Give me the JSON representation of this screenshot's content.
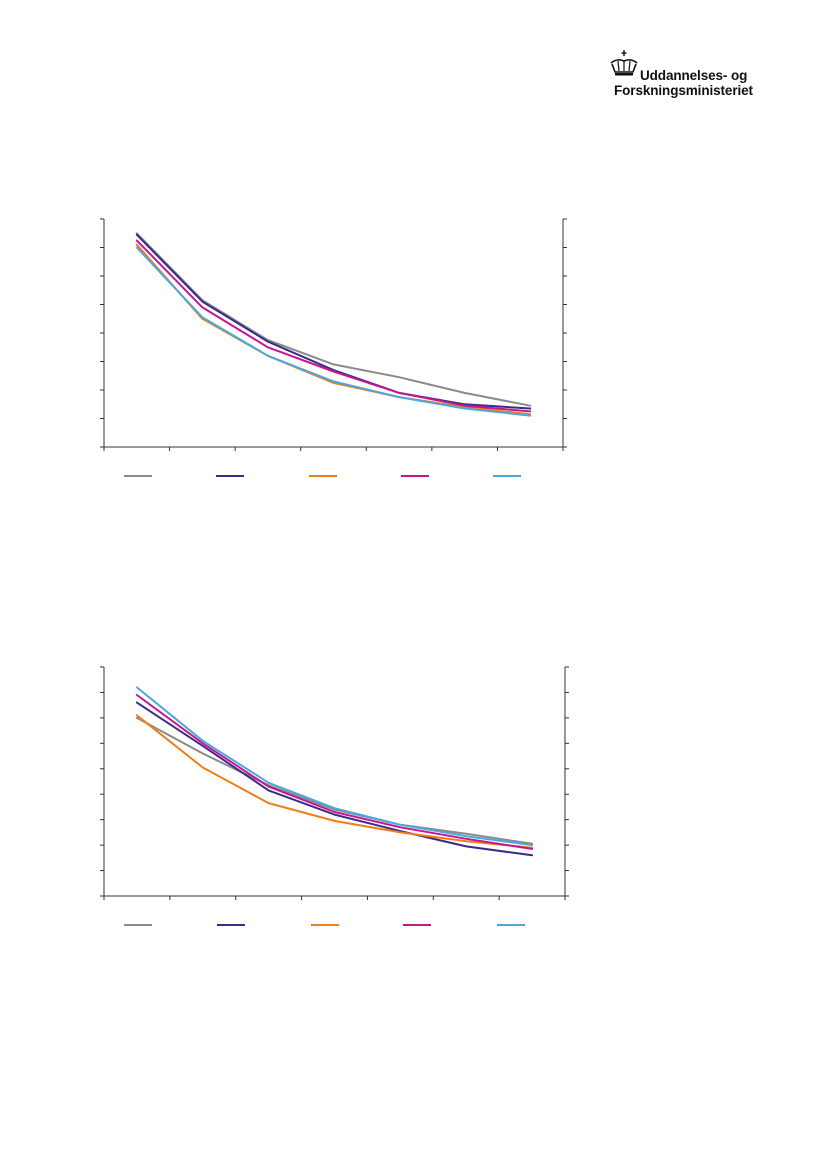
{
  "logo": {
    "line1": "Uddannelses- og",
    "line2": "Forskningsministeriet"
  },
  "colors": {
    "axis": "#333333",
    "series": [
      "#8a8a8a",
      "#3b2a86",
      "#ef7d1a",
      "#c4178f",
      "#4aa8de"
    ]
  },
  "chart_data": [
    {
      "type": "line",
      "x": [
        1,
        2,
        3,
        4,
        5,
        6,
        7
      ],
      "xlim": [
        0.5,
        7.5
      ],
      "ylim": [
        0,
        8
      ],
      "grid": false,
      "legend": "bottom",
      "series": [
        {
          "values": [
            7.5,
            5.15,
            3.75,
            2.9,
            2.45,
            1.9,
            1.45
          ]
        },
        {
          "values": [
            7.45,
            5.1,
            3.7,
            2.7,
            1.9,
            1.5,
            1.35
          ]
        },
        {
          "values": [
            7.1,
            4.5,
            3.2,
            2.25,
            1.75,
            1.4,
            1.15
          ]
        },
        {
          "values": [
            7.25,
            4.9,
            3.5,
            2.65,
            1.9,
            1.45,
            1.25
          ]
        },
        {
          "values": [
            7.0,
            4.55,
            3.2,
            2.3,
            1.75,
            1.35,
            1.1
          ]
        }
      ]
    },
    {
      "type": "line",
      "x": [
        1,
        2,
        3,
        4,
        5,
        6,
        7
      ],
      "xlim": [
        0.5,
        7.5
      ],
      "ylim": [
        0,
        9
      ],
      "grid": false,
      "legend": "bottom",
      "series": [
        {
          "values": [
            7.0,
            5.6,
            4.35,
            3.4,
            2.8,
            2.45,
            2.05
          ]
        },
        {
          "values": [
            7.6,
            5.9,
            4.15,
            3.2,
            2.55,
            1.95,
            1.6
          ]
        },
        {
          "values": [
            7.1,
            5.05,
            3.65,
            2.95,
            2.5,
            2.15,
            1.9
          ]
        },
        {
          "values": [
            7.9,
            6.0,
            4.3,
            3.3,
            2.7,
            2.25,
            1.85
          ]
        },
        {
          "values": [
            8.2,
            6.1,
            4.45,
            3.45,
            2.8,
            2.35,
            2.0
          ]
        }
      ]
    }
  ]
}
